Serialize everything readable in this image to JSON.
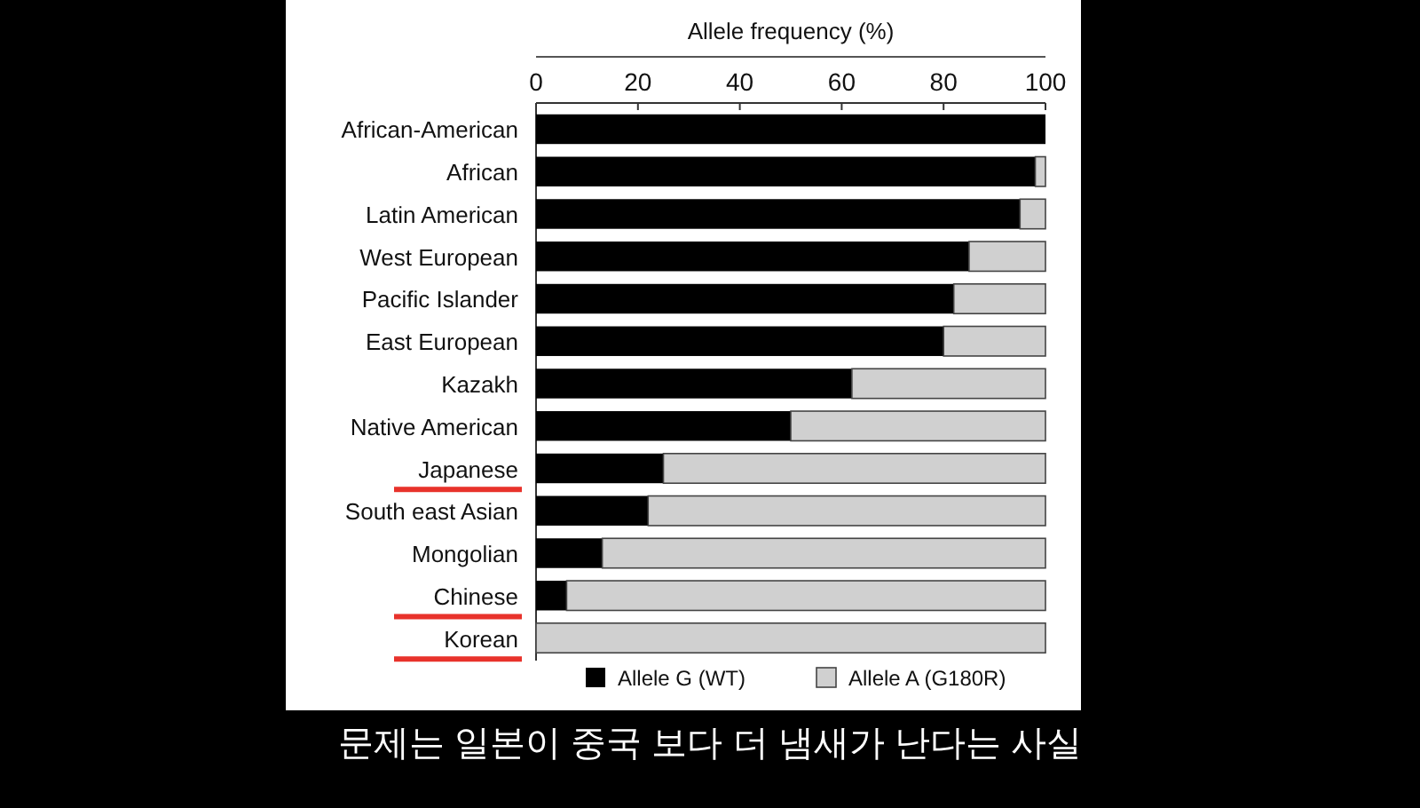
{
  "chart_data": {
    "type": "bar",
    "orientation": "horizontal",
    "stacked": true,
    "xlabel": "Allele frequency (%)",
    "categories": [
      "African-American",
      "African",
      "Latin American",
      "West European",
      "Pacific Islander",
      "East European",
      "Kazakh",
      "Native American",
      "Japanese",
      "South east Asian",
      "Mongolian",
      "Chinese",
      "Korean"
    ],
    "series": [
      {
        "name": "Allele G (WT)",
        "color": "#000000",
        "values": [
          100,
          98,
          95,
          85,
          82,
          80,
          62,
          50,
          25,
          22,
          13,
          6,
          0
        ]
      },
      {
        "name": "Allele A (G180R)",
        "color": "#d0d0d0",
        "values": [
          0,
          2,
          5,
          15,
          18,
          20,
          38,
          50,
          75,
          78,
          87,
          94,
          100
        ]
      }
    ],
    "xlim": [
      0,
      100
    ],
    "xticks": [
      0,
      20,
      40,
      60,
      80,
      100
    ],
    "grid": false,
    "legend": "bottom",
    "annotations": [
      "문제는 일본이 중국 보다 더 냄새가 난다는 사실"
    ]
  }
}
